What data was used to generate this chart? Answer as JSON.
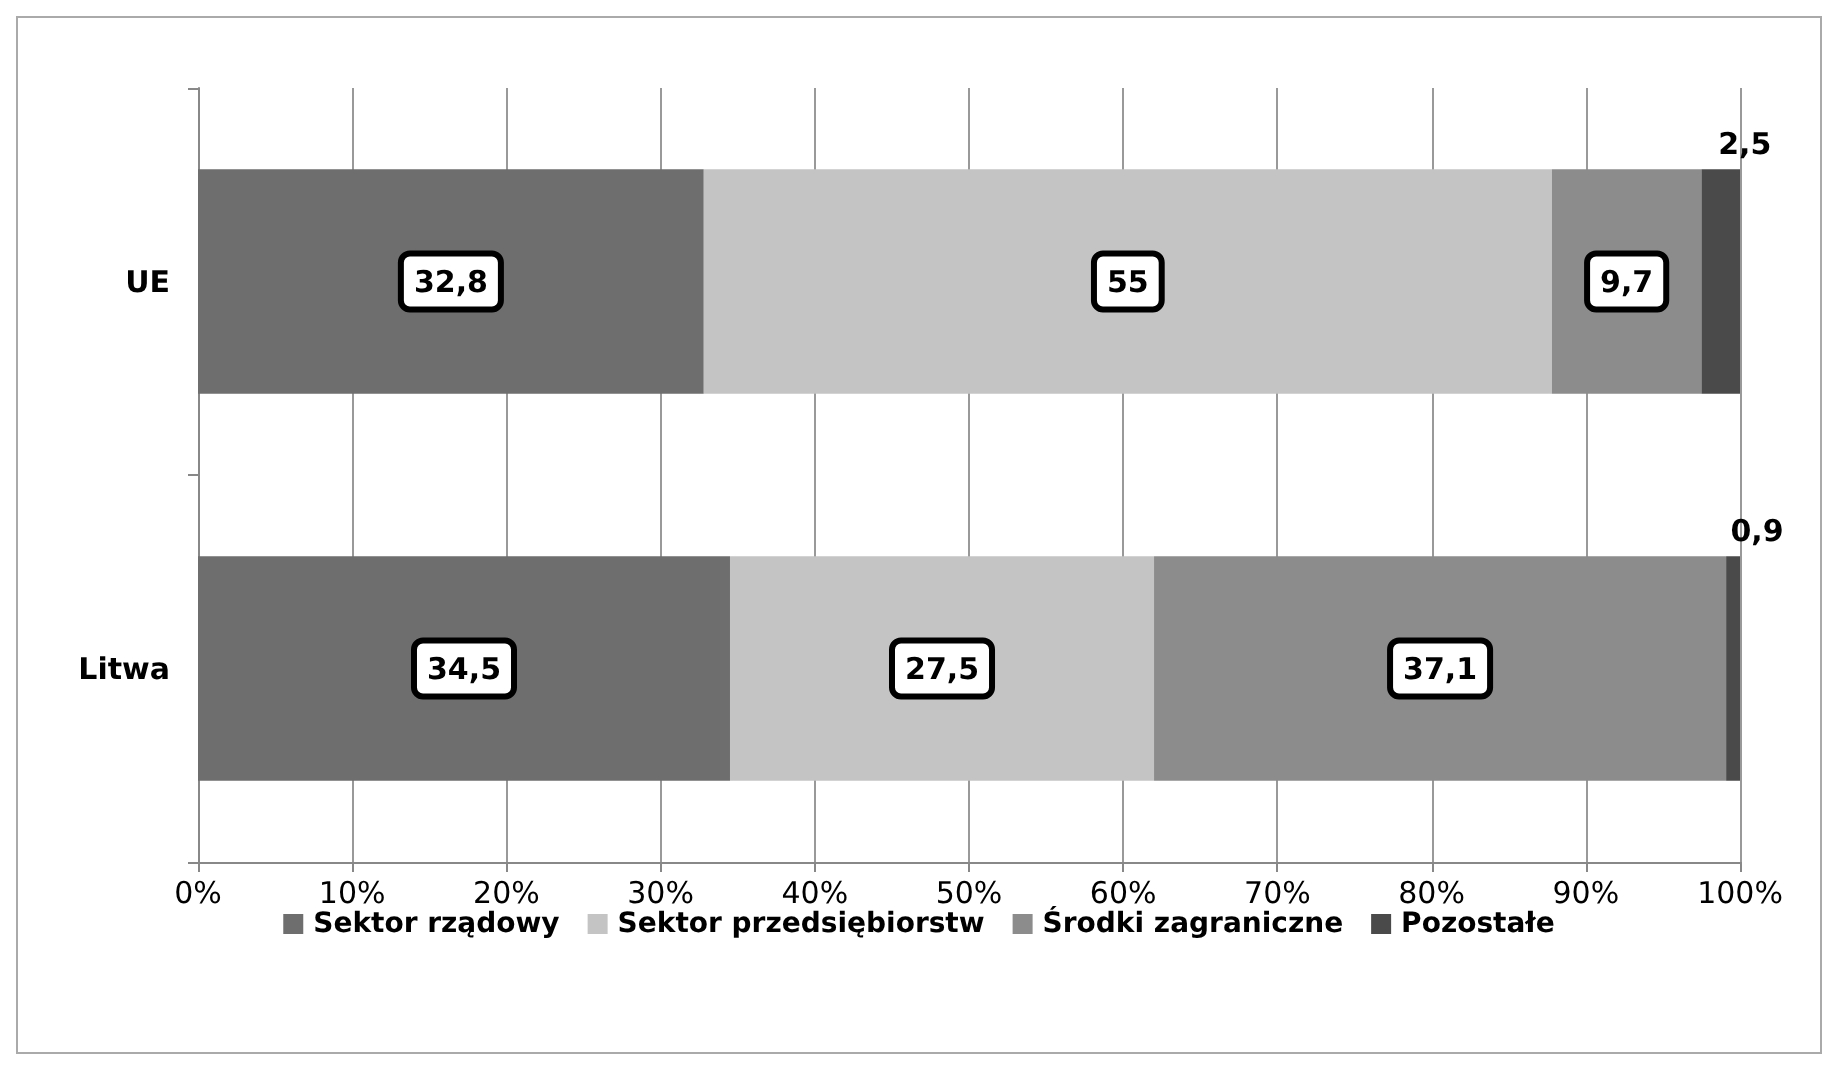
{
  "chart_data": {
    "type": "bar",
    "orientation": "horizontal",
    "stacked": true,
    "categories": [
      "UE",
      "Litwa"
    ],
    "series": [
      {
        "name": "Sektor rządowy",
        "color": "#6e6e6e",
        "values": [
          32.8,
          34.5
        ],
        "value_labels": [
          "32,8",
          "34,5"
        ]
      },
      {
        "name": "Sektor przedsiębiorstw",
        "color": "#c4c4c4",
        "values": [
          55,
          27.5
        ],
        "value_labels": [
          "55",
          "27,5"
        ]
      },
      {
        "name": "Środki zagraniczne",
        "color": "#8c8c8c",
        "values": [
          9.7,
          37.1
        ],
        "value_labels": [
          "9,7",
          "37,1"
        ]
      },
      {
        "name": "Pozostałe",
        "color": "#4a4a4a",
        "values": [
          2.5,
          0.9
        ],
        "value_labels": [
          "2,5",
          "0,9"
        ]
      }
    ],
    "xlim": [
      0,
      100
    ],
    "xticks": [
      {
        "value": 0,
        "label": "0%"
      },
      {
        "value": 10,
        "label": "10%"
      },
      {
        "value": 20,
        "label": "20%"
      },
      {
        "value": 30,
        "label": "30%"
      },
      {
        "value": 40,
        "label": "40%"
      },
      {
        "value": 50,
        "label": "50%"
      },
      {
        "value": 60,
        "label": "60%"
      },
      {
        "value": 70,
        "label": "70%"
      },
      {
        "value": 80,
        "label": "80%"
      },
      {
        "value": 90,
        "label": "90%"
      },
      {
        "value": 100,
        "label": "100%"
      }
    ],
    "grid": "x",
    "legend": "bottom"
  }
}
